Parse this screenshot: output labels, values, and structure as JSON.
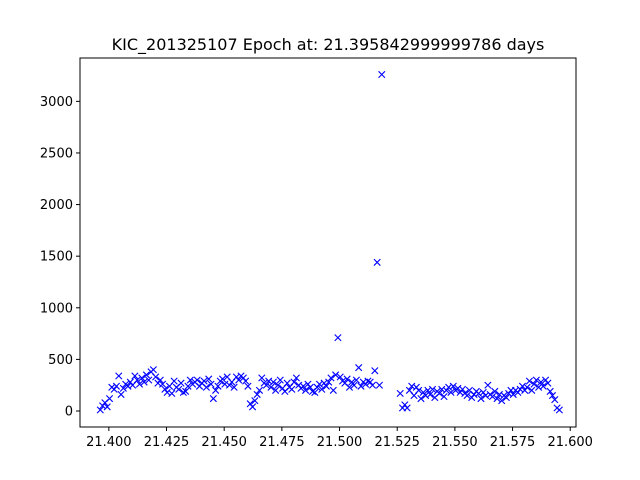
{
  "chart_data": {
    "type": "scatter",
    "title": "KIC_201325107 Epoch at: 21.395842999999786 days",
    "xlabel": "",
    "ylabel": "",
    "xlim": [
      21.3875,
      21.6025
    ],
    "ylim": [
      -155,
      3420
    ],
    "xticks": [
      21.4,
      21.425,
      21.45,
      21.475,
      21.5,
      21.525,
      21.55,
      21.575,
      21.6
    ],
    "xtick_labels": [
      "21.400",
      "21.425",
      "21.450",
      "21.475",
      "21.500",
      "21.525",
      "21.550",
      "21.575",
      "21.600"
    ],
    "yticks": [
      0,
      500,
      1000,
      1500,
      2000,
      2500,
      3000
    ],
    "ytick_labels": [
      "0",
      "500",
      "1000",
      "1500",
      "2000",
      "2500",
      "3000"
    ],
    "grid": false,
    "marker": "x",
    "color": "#0000ff",
    "series": [
      {
        "points": [
          [
            21.3963,
            10
          ],
          [
            21.3973,
            50
          ],
          [
            21.3983,
            80
          ],
          [
            21.3993,
            40
          ],
          [
            21.4003,
            120
          ],
          [
            21.4013,
            230
          ],
          [
            21.4023,
            210
          ],
          [
            21.4033,
            240
          ],
          [
            21.4043,
            340
          ],
          [
            21.4053,
            160
          ],
          [
            21.4063,
            220
          ],
          [
            21.4073,
            260
          ],
          [
            21.4083,
            240
          ],
          [
            21.4093,
            280
          ],
          [
            21.4103,
            250
          ],
          [
            21.4113,
            340
          ],
          [
            21.4123,
            300
          ],
          [
            21.4133,
            260
          ],
          [
            21.4143,
            320
          ],
          [
            21.4153,
            280
          ],
          [
            21.4163,
            350
          ],
          [
            21.4173,
            300
          ],
          [
            21.4183,
            380
          ],
          [
            21.4193,
            400
          ],
          [
            21.4203,
            330
          ],
          [
            21.4213,
            270
          ],
          [
            21.4223,
            300
          ],
          [
            21.4233,
            260
          ],
          [
            21.4243,
            210
          ],
          [
            21.4253,
            180
          ],
          [
            21.4263,
            240
          ],
          [
            21.4273,
            170
          ],
          [
            21.4283,
            290
          ],
          [
            21.4293,
            230
          ],
          [
            21.4303,
            210
          ],
          [
            21.4313,
            270
          ],
          [
            21.4323,
            180
          ],
          [
            21.4333,
            190
          ],
          [
            21.4343,
            240
          ],
          [
            21.4353,
            300
          ],
          [
            21.4363,
            260
          ],
          [
            21.4373,
            280
          ],
          [
            21.4383,
            300
          ],
          [
            21.4393,
            240
          ],
          [
            21.4403,
            270
          ],
          [
            21.4413,
            290
          ],
          [
            21.4423,
            230
          ],
          [
            21.4433,
            310
          ],
          [
            21.4443,
            260
          ],
          [
            21.4453,
            120
          ],
          [
            21.4463,
            200
          ],
          [
            21.4473,
            240
          ],
          [
            21.4483,
            290
          ],
          [
            21.4493,
            310
          ],
          [
            21.4503,
            260
          ],
          [
            21.4513,
            330
          ],
          [
            21.4523,
            250
          ],
          [
            21.4533,
            280
          ],
          [
            21.4543,
            230
          ],
          [
            21.4553,
            330
          ],
          [
            21.4563,
            300
          ],
          [
            21.4573,
            340
          ],
          [
            21.4583,
            320
          ],
          [
            21.4593,
            290
          ],
          [
            21.4603,
            240
          ],
          [
            21.4613,
            70
          ],
          [
            21.4623,
            40
          ],
          [
            21.4633,
            100
          ],
          [
            21.4643,
            160
          ],
          [
            21.4653,
            200
          ],
          [
            21.4663,
            320
          ],
          [
            21.4673,
            270
          ],
          [
            21.4683,
            250
          ],
          [
            21.4693,
            290
          ],
          [
            21.4703,
            230
          ],
          [
            21.4713,
            280
          ],
          [
            21.4723,
            200
          ],
          [
            21.4733,
            250
          ],
          [
            21.4743,
            300
          ],
          [
            21.4753,
            220
          ],
          [
            21.4763,
            190
          ],
          [
            21.4773,
            270
          ],
          [
            21.4783,
            230
          ],
          [
            21.4793,
            210
          ],
          [
            21.4803,
            280
          ],
          [
            21.4813,
            320
          ],
          [
            21.4823,
            250
          ],
          [
            21.4833,
            220
          ],
          [
            21.4843,
            240
          ],
          [
            21.4853,
            200
          ],
          [
            21.4863,
            260
          ],
          [
            21.4873,
            230
          ],
          [
            21.4883,
            190
          ],
          [
            21.4893,
            180
          ],
          [
            21.4903,
            230
          ],
          [
            21.4913,
            260
          ],
          [
            21.4923,
            210
          ],
          [
            21.4933,
            270
          ],
          [
            21.4943,
            240
          ],
          [
            21.4953,
            280
          ],
          [
            21.4963,
            320
          ],
          [
            21.4973,
            200
          ],
          [
            21.4983,
            350
          ],
          [
            21.4993,
            710
          ],
          [
            21.5003,
            330
          ],
          [
            21.5013,
            290
          ],
          [
            21.5023,
            270
          ],
          [
            21.5033,
            310
          ],
          [
            21.5043,
            230
          ],
          [
            21.5053,
            280
          ],
          [
            21.5063,
            250
          ],
          [
            21.5073,
            300
          ],
          [
            21.5083,
            420
          ],
          [
            21.5093,
            240
          ],
          [
            21.5103,
            280
          ],
          [
            21.5113,
            260
          ],
          [
            21.5123,
            290
          ],
          [
            21.5133,
            280
          ],
          [
            21.5143,
            250
          ],
          [
            21.5153,
            390
          ],
          [
            21.5163,
            1440
          ],
          [
            21.5173,
            250
          ],
          [
            21.5183,
            3260
          ],
          [
            21.5263,
            170
          ],
          [
            21.5273,
            30
          ],
          [
            21.5283,
            60
          ],
          [
            21.5293,
            30
          ],
          [
            21.5303,
            200
          ],
          [
            21.5313,
            240
          ],
          [
            21.5323,
            150
          ],
          [
            21.5333,
            230
          ],
          [
            21.5343,
            200
          ],
          [
            21.5353,
            120
          ],
          [
            21.5363,
            180
          ],
          [
            21.5373,
            150
          ],
          [
            21.5383,
            200
          ],
          [
            21.5393,
            160
          ],
          [
            21.5403,
            210
          ],
          [
            21.5413,
            130
          ],
          [
            21.5423,
            190
          ],
          [
            21.5433,
            170
          ],
          [
            21.5443,
            210
          ],
          [
            21.5453,
            140
          ],
          [
            21.5463,
            200
          ],
          [
            21.5473,
            230
          ],
          [
            21.5483,
            180
          ],
          [
            21.5493,
            240
          ],
          [
            21.5503,
            200
          ],
          [
            21.5513,
            220
          ],
          [
            21.5523,
            180
          ],
          [
            21.5533,
            210
          ],
          [
            21.5543,
            170
          ],
          [
            21.5553,
            150
          ],
          [
            21.5563,
            200
          ],
          [
            21.5573,
            130
          ],
          [
            21.5583,
            160
          ],
          [
            21.5593,
            190
          ],
          [
            21.5603,
            170
          ],
          [
            21.5613,
            120
          ],
          [
            21.5623,
            180
          ],
          [
            21.5633,
            150
          ],
          [
            21.5643,
            250
          ],
          [
            21.5653,
            160
          ],
          [
            21.5663,
            140
          ],
          [
            21.5673,
            190
          ],
          [
            21.5683,
            120
          ],
          [
            21.5693,
            160
          ],
          [
            21.5703,
            100
          ],
          [
            21.5713,
            150
          ],
          [
            21.5723,
            130
          ],
          [
            21.5733,
            170
          ],
          [
            21.5743,
            200
          ],
          [
            21.5753,
            160
          ],
          [
            21.5763,
            200
          ],
          [
            21.5773,
            180
          ],
          [
            21.5783,
            210
          ],
          [
            21.5793,
            240
          ],
          [
            21.5803,
            200
          ],
          [
            21.5813,
            230
          ],
          [
            21.5823,
            290
          ],
          [
            21.5833,
            200
          ],
          [
            21.5843,
            260
          ],
          [
            21.5853,
            300
          ],
          [
            21.5863,
            230
          ],
          [
            21.5873,
            280
          ],
          [
            21.5883,
            240
          ],
          [
            21.5893,
            300
          ],
          [
            21.5903,
            270
          ],
          [
            21.5913,
            190
          ],
          [
            21.5923,
            150
          ],
          [
            21.5933,
            110
          ],
          [
            21.5943,
            30
          ],
          [
            21.5953,
            10
          ]
        ]
      }
    ]
  }
}
